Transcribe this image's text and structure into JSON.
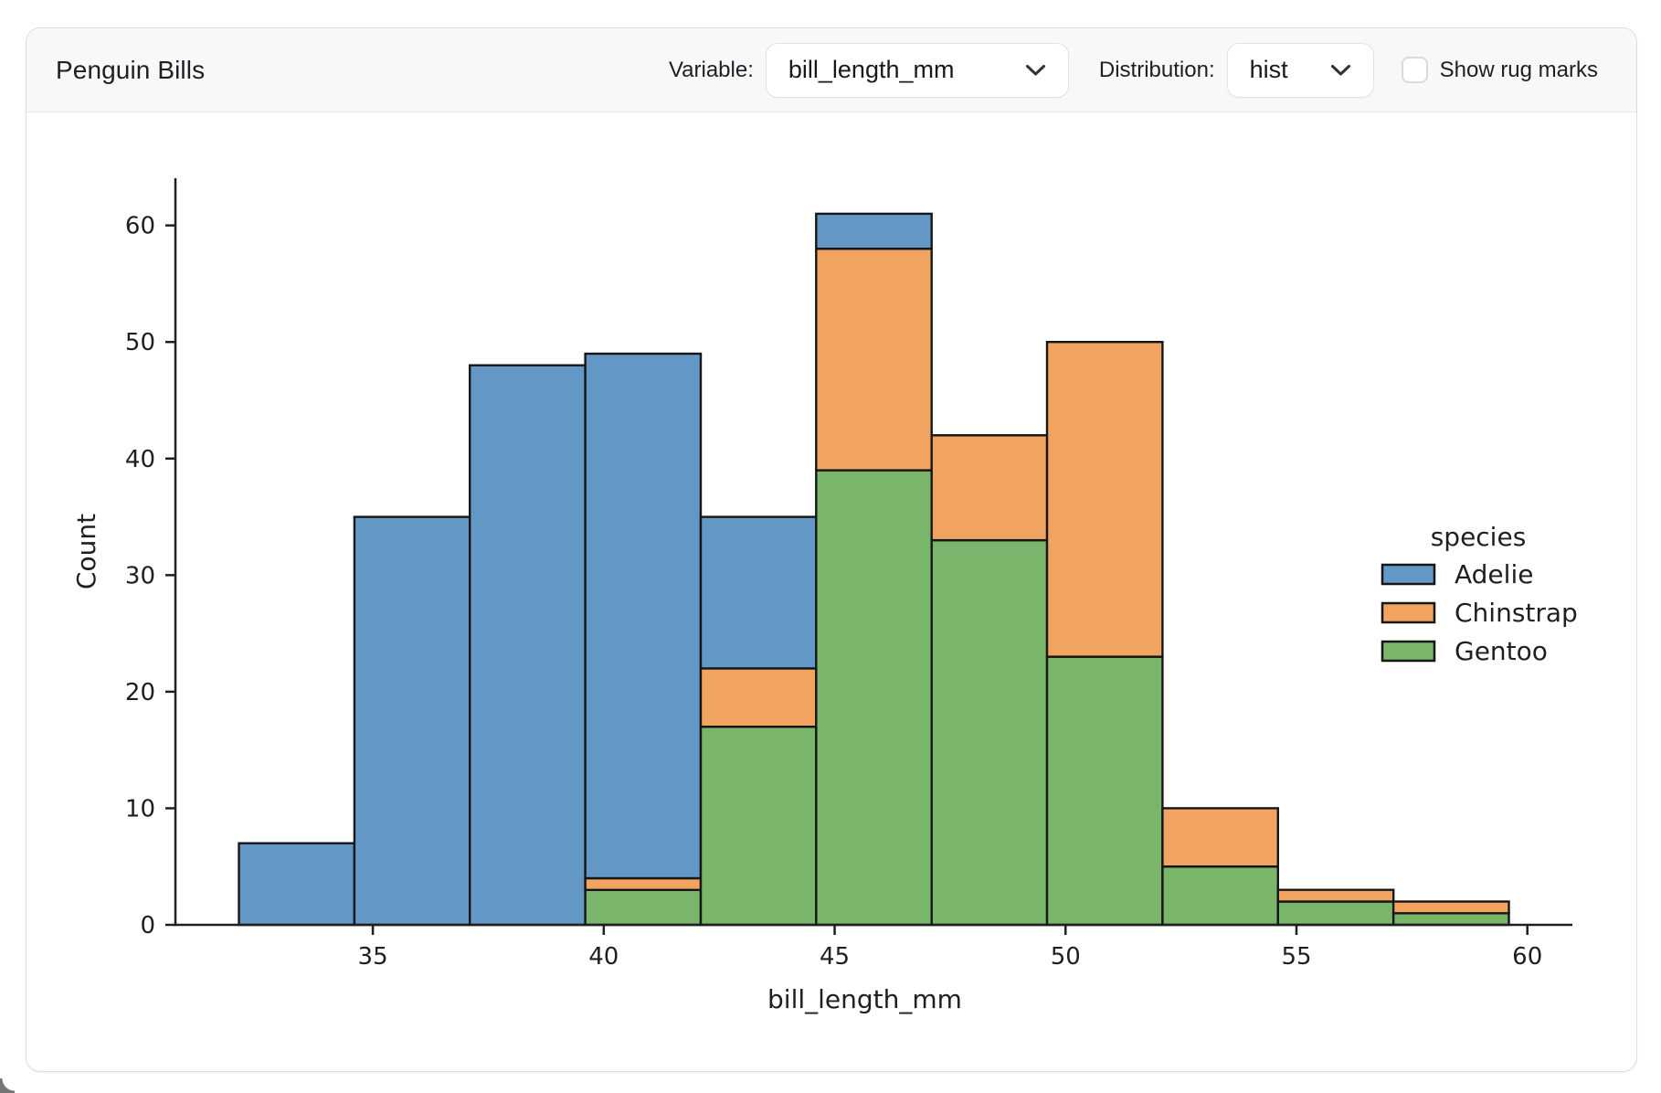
{
  "header": {
    "title": "Penguin Bills",
    "variable_label": "Variable:",
    "variable_value": "bill_length_mm",
    "distribution_label": "Distribution:",
    "distribution_value": "hist",
    "rug_label": "Show rug marks",
    "rug_checked": false
  },
  "chart_data": {
    "type": "bar",
    "subtype": "stacked-histogram",
    "xlabel": "bill_length_mm",
    "ylabel": "Count",
    "bin_edges": [
      32.1,
      34.6,
      37.1,
      39.6,
      42.1,
      44.6,
      47.1,
      49.6,
      52.1,
      54.6,
      57.1,
      59.6
    ],
    "series": [
      {
        "name": "Adelie",
        "color": "#6397C6",
        "values": [
          7,
          35,
          48,
          45,
          13,
          3,
          0,
          0,
          0,
          0,
          0
        ]
      },
      {
        "name": "Chinstrap",
        "color": "#F1A45F",
        "values": [
          0,
          0,
          0,
          1,
          5,
          19,
          9,
          27,
          5,
          1,
          1
        ]
      },
      {
        "name": "Gentoo",
        "color": "#79B56B",
        "values": [
          0,
          0,
          0,
          3,
          17,
          39,
          33,
          23,
          5,
          2,
          1
        ]
      }
    ],
    "bin_totals": [
      7,
      35,
      48,
      49,
      35,
      61,
      42,
      50,
      10,
      3,
      2
    ],
    "stack_order_bottom_to_top": [
      "Gentoo",
      "Chinstrap",
      "Adelie"
    ],
    "legend": {
      "title": "species",
      "entries": [
        "Adelie",
        "Chinstrap",
        "Gentoo"
      ],
      "position": "center-right",
      "frame": false
    },
    "xticks": [
      35,
      40,
      45,
      50,
      55,
      60
    ],
    "yticks": [
      0,
      10,
      20,
      30,
      40,
      50,
      60
    ],
    "xlim": [
      30.725,
      60.975
    ],
    "ylim": [
      0,
      64.05
    ],
    "grid": false,
    "bar_edge_color": "#161616",
    "axis_color": "#1f1f1f",
    "text_color": "#1f1f1f"
  }
}
